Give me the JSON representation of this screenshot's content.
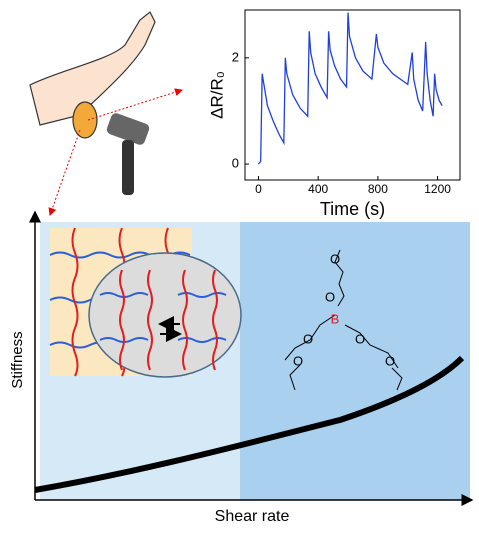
{
  "chart_data": {
    "type": "line",
    "xlabel": "Time (s)",
    "ylabel": "ΔR/R₀",
    "x": [
      0,
      15,
      25,
      60,
      100,
      140,
      170,
      180,
      190,
      230,
      280,
      330,
      340,
      350,
      380,
      420,
      460,
      470,
      480,
      510,
      550,
      590,
      600,
      610,
      650,
      700,
      760,
      790,
      800,
      840,
      900,
      1000,
      1030,
      1040,
      1070,
      1100,
      1120,
      1130,
      1150,
      1170,
      1180,
      1190,
      1210,
      1230
    ],
    "series": [
      {
        "name": "ΔR/R₀",
        "color": "#1f3fe0",
        "values": [
          0,
          0.05,
          1.7,
          1.1,
          0.8,
          0.55,
          0.4,
          2.0,
          1.7,
          1.3,
          1.05,
          0.9,
          2.5,
          2.1,
          1.7,
          1.45,
          1.25,
          2.5,
          2.15,
          1.85,
          1.6,
          1.45,
          2.85,
          2.4,
          2.0,
          1.75,
          1.6,
          2.45,
          2.2,
          1.9,
          1.7,
          1.5,
          2.1,
          1.6,
          1.2,
          1.0,
          2.3,
          1.7,
          1.2,
          0.9,
          1.7,
          1.4,
          1.2,
          1.1
        ]
      }
    ],
    "xlim": [
      -90,
      1350
    ],
    "ylim": [
      -0.3,
      2.9
    ],
    "xticks": [
      0,
      400,
      800,
      1200
    ],
    "yticks": [
      0,
      2
    ]
  },
  "diagram": {
    "y_axis_label": "Stiffness",
    "x_axis_label": "Shear rate",
    "boron": "B",
    "oxygen": "O"
  }
}
